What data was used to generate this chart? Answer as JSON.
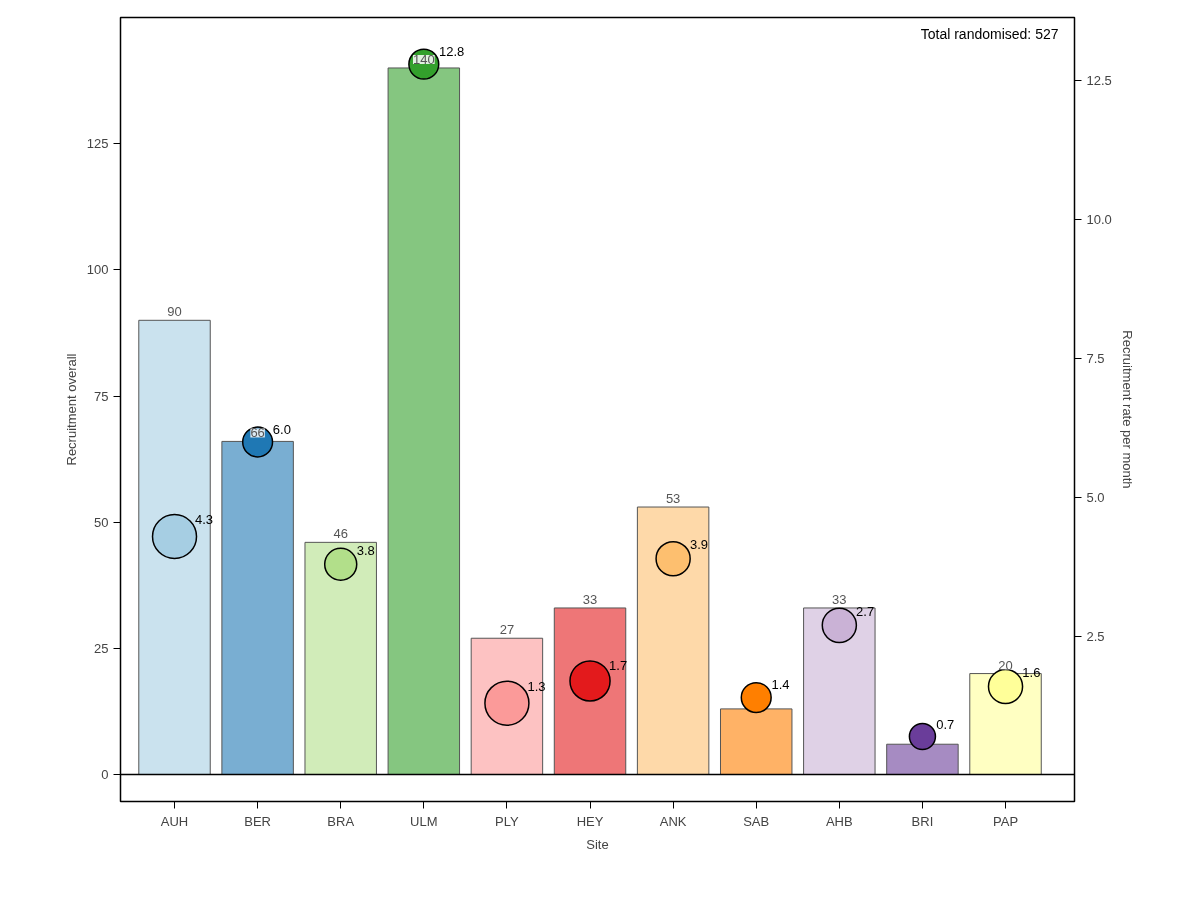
{
  "chart_data": {
    "type": "bar",
    "xlabel": "Site",
    "ylabel": "Recruitment overall",
    "y2label": "Recruitment rate per month",
    "categories": [
      "AUH",
      "BER",
      "BRA",
      "ULM",
      "PLY",
      "HEY",
      "ANK",
      "SAB",
      "AHB",
      "BRI",
      "PAP"
    ],
    "series": [
      {
        "colors": [
          "#cae2ee",
          "#79aed2",
          "#d1ecb9",
          "#85c680",
          "#fdc2c2",
          "#ee7677",
          "#fed9a9",
          "#ffb266",
          "#dfd1e6",
          "#a68bc2",
          "#ffffc2"
        ],
        "values": [
          90,
          66,
          46,
          140,
          27,
          33,
          53,
          13,
          33,
          6,
          20
        ],
        "value_labels": [
          "90",
          "66",
          "46",
          "140",
          "27",
          "33",
          "53",
          null,
          "33",
          null,
          "20"
        ]
      },
      {
        "type": "bubble",
        "axis": "y2",
        "colors": [
          "#a6cee3",
          "#1f78b4",
          "#b2df8a",
          "#33a02c",
          "#fb9a99",
          "#e31a1c",
          "#fdbf6f",
          "#ff7f00",
          "#cab2d6",
          "#6a3d9a",
          "#ffff99"
        ],
        "values": [
          4.3,
          6.0,
          3.8,
          12.8,
          1.3,
          1.7,
          3.9,
          1.4,
          2.7,
          0.7,
          1.6
        ],
        "sizes": [
          1,
          0.46,
          0.53,
          0.46,
          1,
          0.83,
          0.6,
          0.46,
          0.6,
          0.35,
          0.6
        ],
        "value_labels": [
          "4.3",
          "6.0",
          "3.8",
          "12.8",
          "1.3",
          "1.7",
          "3.9",
          "1.4",
          "2.7",
          "0.7",
          "1.6"
        ]
      }
    ],
    "ylim": [
      -5.35,
      150
    ],
    "yticks": [
      0,
      25,
      50,
      75,
      100,
      125
    ],
    "y2lim": [
      -0.47,
      13.64
    ],
    "y2ticks": [
      {
        "value": 2.5,
        "label": "2.5"
      },
      {
        "value": 5,
        "label": "5.0"
      },
      {
        "value": 7.5,
        "label": "7.5"
      },
      {
        "value": 10,
        "label": "10.0"
      },
      {
        "value": 12.5,
        "label": "12.5"
      }
    ],
    "ref_lines": [
      {
        "axis": "y",
        "value": 0,
        "color": "#000000"
      }
    ],
    "annotations": [
      "Total randomised: 527"
    ],
    "grid": false
  }
}
